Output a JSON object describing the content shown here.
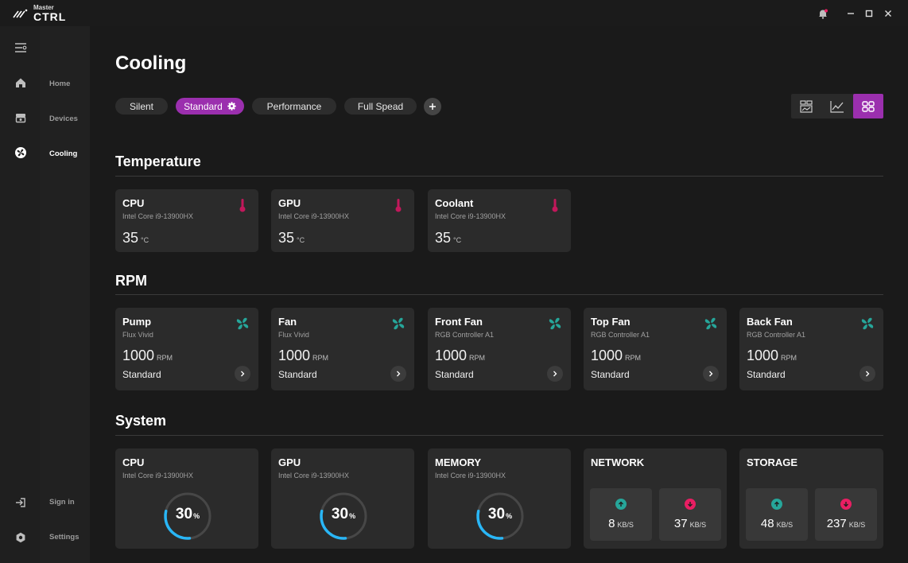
{
  "app": {
    "logo_small": "Master",
    "logo_big": "CTRL"
  },
  "nav": {
    "home": "Home",
    "devices": "Devices",
    "cooling": "Cooling",
    "sign_in": "Sign in",
    "settings": "Settings"
  },
  "page": {
    "title": "Cooling",
    "presets": [
      "Silent",
      "Standard",
      "Performance",
      "Full Spead"
    ],
    "active_preset": "Standard"
  },
  "temperature": {
    "title": "Temperature",
    "cards": [
      {
        "name": "CPU",
        "sub": "Intel Core i9-13900HX",
        "value": "35",
        "unit": "°C"
      },
      {
        "name": "GPU",
        "sub": "Intel Core i9-13900HX",
        "value": "35",
        "unit": "°C"
      },
      {
        "name": "Coolant",
        "sub": "Intel Core i9-13900HX",
        "value": "35",
        "unit": "°C"
      }
    ]
  },
  "rpm": {
    "title": "RPM",
    "cards": [
      {
        "name": "Pump",
        "sub": "Flux Vivid",
        "value": "1000",
        "unit": "RPM",
        "mode": "Standard"
      },
      {
        "name": "Fan",
        "sub": "Flux Vivid",
        "value": "1000",
        "unit": "RPM",
        "mode": "Standard"
      },
      {
        "name": "Front Fan",
        "sub": "RGB Controller A1",
        "value": "1000",
        "unit": "RPM",
        "mode": "Standard"
      },
      {
        "name": "Top Fan",
        "sub": "RGB Controller A1",
        "value": "1000",
        "unit": "RPM",
        "mode": "Standard"
      },
      {
        "name": "Back Fan",
        "sub": "RGB Controller A1",
        "value": "1000",
        "unit": "RPM",
        "mode": "Standard"
      }
    ]
  },
  "system": {
    "title": "System",
    "gauges": [
      {
        "name": "CPU",
        "sub": "Intel Core i9-13900HX",
        "value": "30",
        "unit": "%",
        "percent": 30
      },
      {
        "name": "GPU",
        "sub": "Intel Core i9-13900HX",
        "value": "30",
        "unit": "%",
        "percent": 30
      },
      {
        "name": "MEMORY",
        "sub": "Intel Core i9-13900HX",
        "value": "30",
        "unit": "%",
        "percent": 30
      }
    ],
    "network": {
      "name": "NETWORK",
      "upload": "8",
      "download": "37",
      "unit": "KB/S"
    },
    "storage": {
      "name": "STORAGE",
      "upload": "48",
      "download": "237",
      "unit": "KB/S"
    }
  },
  "colors": {
    "accent": "#9b2fae",
    "thermo": "#c2185b",
    "fan": "#26a69a",
    "gauge": "#29b6f6",
    "upload": "#26a69a",
    "download": "#e91e63"
  },
  "icons": {
    "temp": "thermometer-icon",
    "rpm": "fan-icon",
    "upload": "arrow-up-icon",
    "download": "arrow-down-icon"
  }
}
